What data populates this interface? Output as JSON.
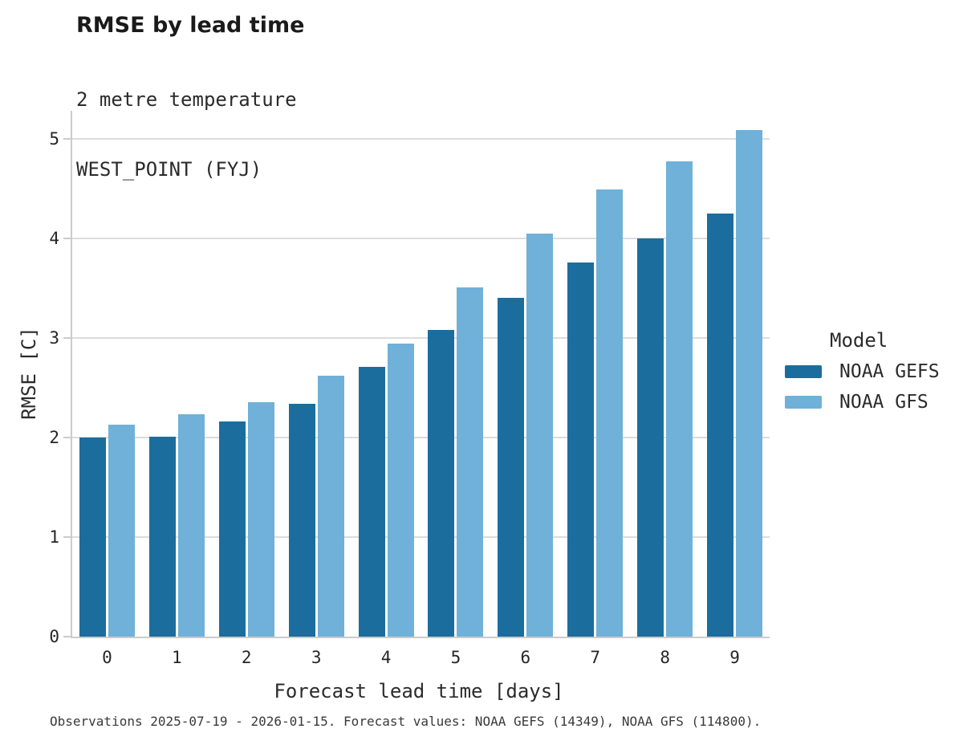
{
  "header": {
    "title": "RMSE by lead time",
    "subtitle_line1": "2 metre temperature",
    "subtitle_line2": "WEST_POINT (FYJ)"
  },
  "legend": {
    "title": "Model",
    "items": [
      {
        "label": "NOAA GEFS",
        "color": "#1b6d9d"
      },
      {
        "label": "NOAA GFS",
        "color": "#6fb1d8"
      }
    ]
  },
  "footer": {
    "text": "Observations 2025-07-19 - 2026-01-15. Forecast values: NOAA GEFS (14349), NOAA GFS (114800)."
  },
  "chart_data": {
    "type": "bar",
    "title": "RMSE by lead time",
    "subtitle": [
      "2 metre temperature",
      "WEST_POINT (FYJ)"
    ],
    "categories": [
      "0",
      "1",
      "2",
      "3",
      "4",
      "5",
      "6",
      "7",
      "8",
      "9"
    ],
    "series": [
      {
        "name": "NOAA GEFS",
        "color": "#1b6d9d",
        "values": [
          2.0,
          2.01,
          2.16,
          2.34,
          2.71,
          3.08,
          3.4,
          3.76,
          4.0,
          4.25
        ]
      },
      {
        "name": "NOAA GFS",
        "color": "#6fb1d8",
        "values": [
          2.13,
          2.23,
          2.35,
          2.62,
          2.94,
          3.51,
          4.05,
          4.49,
          4.77,
          5.09
        ]
      }
    ],
    "xlabel": "Forecast lead time [days]",
    "ylabel": "RMSE [C]",
    "ylim": [
      0,
      5.28
    ],
    "yticks": [
      0,
      1,
      2,
      3,
      4,
      5
    ],
    "grid": "horizontal",
    "legend_title": "Model",
    "legend_position": "right",
    "footnote": "Observations 2025-07-19 - 2026-01-15. Forecast values: NOAA GEFS (14349), NOAA GFS (114800)."
  }
}
